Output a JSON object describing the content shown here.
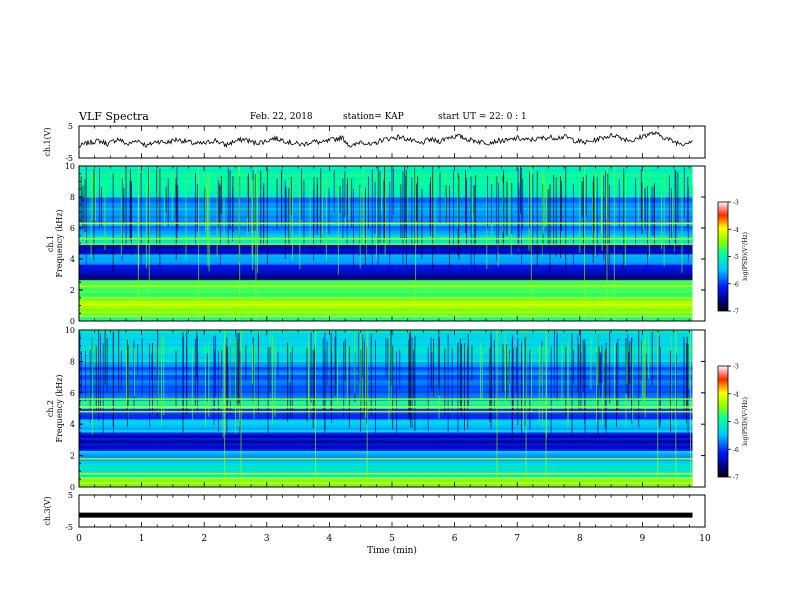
{
  "header": {
    "title": "VLF Spectra",
    "date": "Feb. 22, 2018",
    "station": "station= KAP",
    "start": "start  UT =   22: 0  : 1"
  },
  "chart_data": [
    {
      "type": "line",
      "ylabel": "ch.1(V)",
      "ylim": [
        -5,
        5
      ],
      "yticks": [
        "5",
        "-5"
      ],
      "xlim": [
        0,
        10
      ],
      "series": [
        {
          "values": [
            -1.4,
            -0.2,
            0.4,
            -0.6,
            1.0,
            -0.8,
            0.6,
            -1.2,
            0.3,
            -0.2,
            0.8,
            0.2,
            -0.6,
            -0.4,
            0.6,
            -1.0,
            0.2,
            0.9,
            -0.3,
            0.1,
            1.2,
            0.6,
            -0.4,
            -0.8,
            0.2,
            -0.3,
            0.7,
            1.4,
            -1.6,
            0.4,
            -1.2,
            0.6,
            1.2,
            1.6,
            0.6,
            -0.6,
            0.8,
            0.2,
            1.6,
            1.8,
            0.8,
            0.2,
            -0.2,
            0.4,
            0.4,
            1.2,
            0.6,
            0.9,
            1.4,
            1.4,
            1.6,
            0.4,
            -0.2,
            0.6,
            1.6,
            2.2,
            1.0,
            0.4,
            2.0,
            2.8,
            1.6,
            0.2,
            -0.6,
            0.6
          ]
        }
      ]
    },
    {
      "type": "heatmap",
      "ylabel": "ch.1\nFrequency (kHz)",
      "ylim": [
        0,
        10
      ],
      "yticks": [
        "0",
        "2",
        "4",
        "6",
        "8",
        "10"
      ],
      "xlim": [
        0,
        10
      ],
      "colorbar": {
        "label": "log(PSD)(V²/Hz)",
        "ticks": [
          "-3",
          "-4",
          "-5",
          "-6",
          "-7"
        ],
        "range": [
          -7,
          -3
        ]
      },
      "bands": [
        {
          "kHz": [
            0,
            0.5
          ],
          "level": -4.8
        },
        {
          "kHz": [
            0.5,
            1.5
          ],
          "level": -4.4
        },
        {
          "kHz": [
            1.5,
            2.3
          ],
          "level": -4.8
        },
        {
          "kHz": [
            2.3,
            2.6
          ],
          "level": -4.5
        },
        {
          "kHz": [
            2.6,
            3.6
          ],
          "level": -6.4
        },
        {
          "kHz": [
            3.6,
            4.3
          ],
          "level": -5.6
        },
        {
          "kHz": [
            4.3,
            5.0
          ],
          "level": -6.2
        },
        {
          "kHz": [
            5.0,
            5.5
          ],
          "level": -5.2
        },
        {
          "kHz": [
            5.5,
            8.0
          ],
          "level": -5.6
        },
        {
          "kHz": [
            8.0,
            10
          ],
          "level": -5.0
        }
      ]
    },
    {
      "type": "heatmap",
      "ylabel": "ch.2\nFrequency (kHz)",
      "ylim": [
        0,
        10
      ],
      "yticks": [
        "0",
        "2",
        "4",
        "6",
        "8",
        "10"
      ],
      "xlim": [
        0,
        10
      ],
      "colorbar": {
        "label": "log(PSD)(V²/Hz)",
        "ticks": [
          "-3",
          "-4",
          "-5",
          "-6",
          "-7"
        ],
        "range": [
          -7,
          -3
        ]
      },
      "bands": [
        {
          "kHz": [
            0,
            0.6
          ],
          "level": -4.6
        },
        {
          "kHz": [
            0.6,
            1.6
          ],
          "level": -5.2
        },
        {
          "kHz": [
            1.6,
            2.3
          ],
          "level": -5.6
        },
        {
          "kHz": [
            2.3,
            3.5
          ],
          "level": -6.4
        },
        {
          "kHz": [
            3.5,
            4.2
          ],
          "level": -5.5
        },
        {
          "kHz": [
            4.2,
            5.0
          ],
          "level": -6.0
        },
        {
          "kHz": [
            5.0,
            5.5
          ],
          "level": -5.0
        },
        {
          "kHz": [
            5.5,
            8.0
          ],
          "level": -5.8
        },
        {
          "kHz": [
            8.0,
            10
          ],
          "level": -5.3
        }
      ]
    },
    {
      "type": "line",
      "ylabel": "ch.3(V)",
      "ylim": [
        -5,
        5
      ],
      "yticks": [
        "5",
        "-5"
      ],
      "xlim": [
        0,
        10
      ],
      "xlabel": "Time (min)",
      "xticks": [
        "0",
        "1",
        "2",
        "3",
        "4",
        "5",
        "6",
        "7",
        "8",
        "9",
        "10"
      ],
      "series": [
        {
          "values": [
            -1.3,
            -1.3
          ]
        }
      ]
    }
  ]
}
